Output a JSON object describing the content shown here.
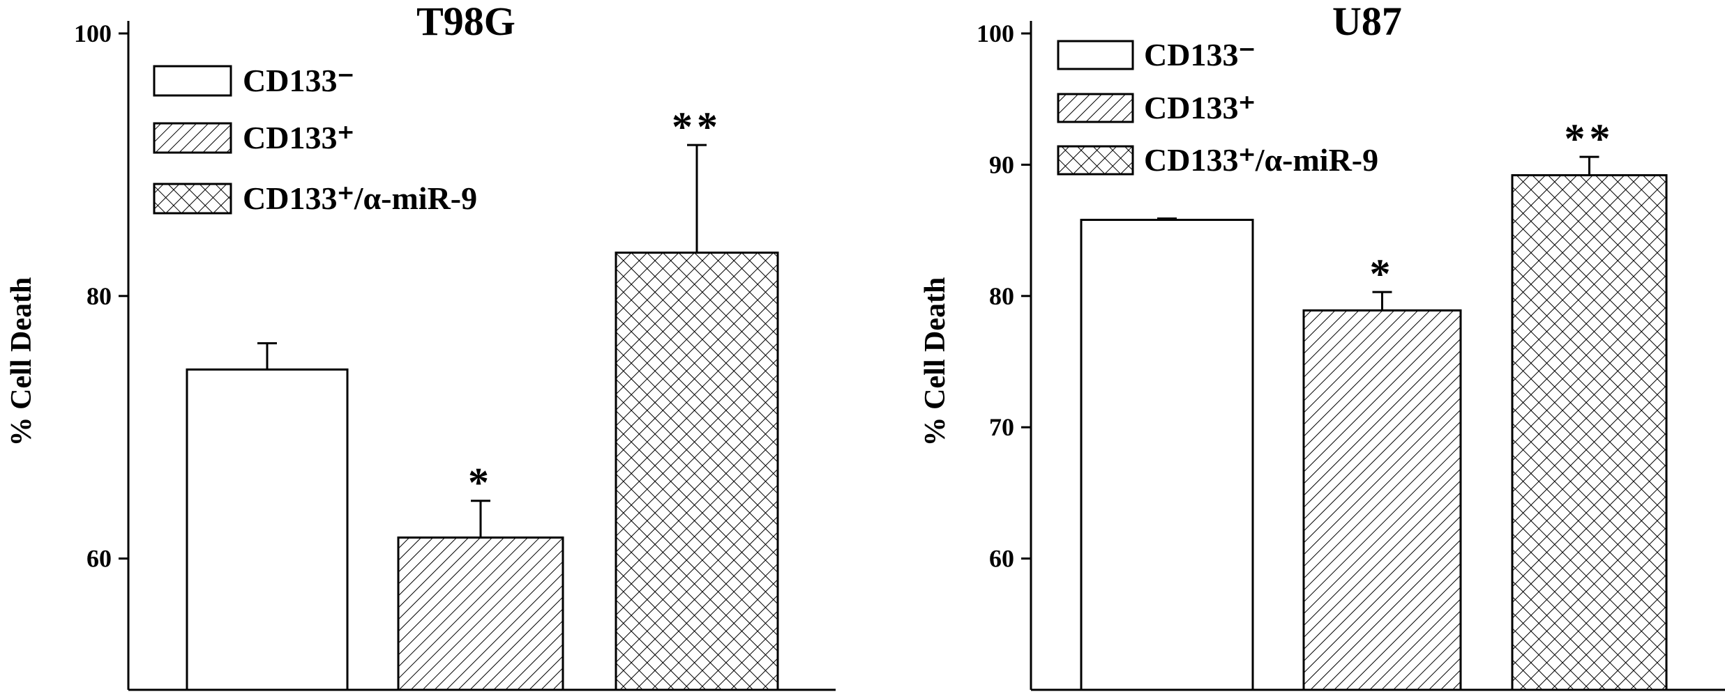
{
  "chart_data": [
    {
      "type": "bar",
      "title": "T98G",
      "y_label": "% Cell Death",
      "ylim": [
        50,
        100
      ],
      "yticks": [
        60,
        80,
        100
      ],
      "series": [
        {
          "name": "CD133⁻",
          "pattern": "none",
          "values": [
            74.4
          ],
          "errors": [
            2.0
          ]
        },
        {
          "name": "CD133⁺",
          "pattern": "hatch",
          "values": [
            61.6
          ],
          "errors": [
            2.8
          ],
          "annotation": "*"
        },
        {
          "name": "CD133⁺/α-miR-9",
          "pattern": "crosshatch",
          "values": [
            83.3
          ],
          "errors": [
            8.2
          ],
          "annotation": "**"
        }
      ]
    },
    {
      "type": "bar",
      "title": "U87",
      "y_label": "% Cell Death",
      "ylim": [
        50,
        100
      ],
      "yticks": [
        60,
        70,
        80,
        90,
        100
      ],
      "series": [
        {
          "name": "CD133⁻",
          "pattern": "none",
          "values": [
            85.8
          ],
          "errors": [
            0.1
          ]
        },
        {
          "name": "CD133⁺",
          "pattern": "hatch",
          "values": [
            78.9
          ],
          "errors": [
            1.4
          ],
          "annotation": "*"
        },
        {
          "name": "CD133⁺/α-miR-9",
          "pattern": "crosshatch",
          "values": [
            89.2
          ],
          "errors": [
            1.4
          ],
          "annotation": "**"
        }
      ]
    }
  ]
}
